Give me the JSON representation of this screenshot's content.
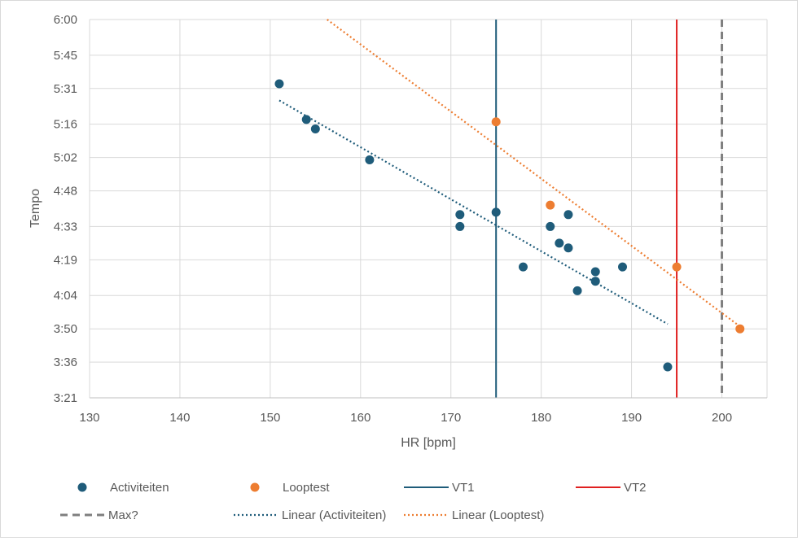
{
  "chart_data": {
    "type": "scatter",
    "title": "",
    "xlabel": "HR [bpm]",
    "ylabel": "Tempo",
    "xlim": [
      130,
      205
    ],
    "ylim_seconds": [
      201,
      360
    ],
    "x_ticks": [
      130,
      140,
      150,
      160,
      170,
      180,
      190,
      200
    ],
    "y_ticks": [
      "3:21",
      "3:36",
      "3:50",
      "4:04",
      "4:19",
      "4:33",
      "4:48",
      "5:02",
      "5:16",
      "5:31",
      "5:45",
      "6:00"
    ],
    "grid": true,
    "legend_position": "bottom",
    "series": [
      {
        "name": "Activiteiten",
        "kind": "scatter",
        "color": "#1f5c7a",
        "points": [
          {
            "x": 151,
            "y": "5:33"
          },
          {
            "x": 154,
            "y": "5:18"
          },
          {
            "x": 155,
            "y": "5:14"
          },
          {
            "x": 161,
            "y": "5:01"
          },
          {
            "x": 171,
            "y": "4:38"
          },
          {
            "x": 171,
            "y": "4:33"
          },
          {
            "x": 175,
            "y": "4:39"
          },
          {
            "x": 178,
            "y": "4:16"
          },
          {
            "x": 181,
            "y": "4:33"
          },
          {
            "x": 182,
            "y": "4:26"
          },
          {
            "x": 183,
            "y": "4:38"
          },
          {
            "x": 183,
            "y": "4:24"
          },
          {
            "x": 184,
            "y": "4:06"
          },
          {
            "x": 186,
            "y": "4:14"
          },
          {
            "x": 186,
            "y": "4:10"
          },
          {
            "x": 189,
            "y": "4:16"
          },
          {
            "x": 194,
            "y": "3:34"
          }
        ]
      },
      {
        "name": "Looptest",
        "kind": "scatter",
        "color": "#ed7d31",
        "points": [
          {
            "x": 175,
            "y": "5:17"
          },
          {
            "x": 181,
            "y": "4:42"
          },
          {
            "x": 195,
            "y": "4:16"
          },
          {
            "x": 202,
            "y": "3:50"
          }
        ]
      },
      {
        "name": "VT1",
        "kind": "vline",
        "x": 175,
        "color": "#1f5c7a"
      },
      {
        "name": "VT2",
        "kind": "vline",
        "x": 195,
        "color": "#e02020"
      },
      {
        "name": "Max?",
        "kind": "vline-dashed",
        "x": 200,
        "color": "#7f7f7f"
      },
      {
        "name": "Linear (Activiteiten)",
        "kind": "trend",
        "color": "#1f5c7a",
        "from": {
          "x": 151,
          "y": "5:26"
        },
        "to": {
          "x": 194,
          "y": "3:52"
        }
      },
      {
        "name": "Linear (Looptest)",
        "kind": "trend",
        "color": "#ed7d31",
        "from": {
          "x": 156.3,
          "y": "6:00"
        },
        "to": {
          "x": 202,
          "y": "3:51"
        }
      }
    ]
  }
}
